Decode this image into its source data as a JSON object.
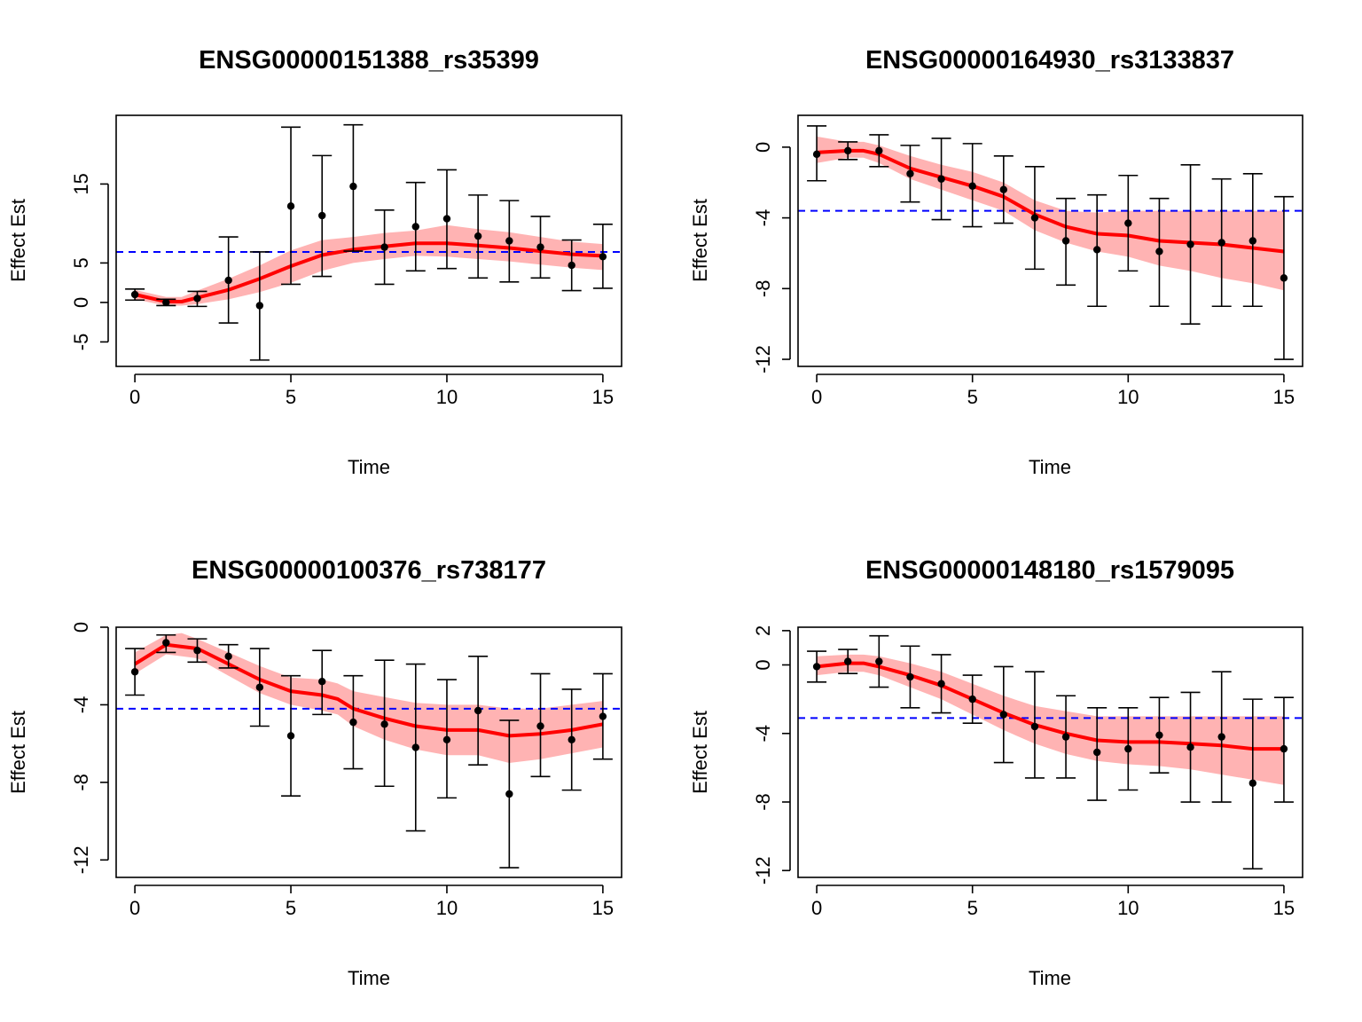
{
  "colors": {
    "line": "#ff0000",
    "band": "#ffb3b3",
    "reference": "#0000ff",
    "points": "#000000",
    "axes": "#000000"
  },
  "chart_data": [
    {
      "type": "line",
      "title": "ENSG00000151388_rs35399",
      "xlabel": "Time",
      "ylabel": "Effect Est",
      "xlim": [
        -0.6,
        15.6
      ],
      "ylim": [
        -8.1,
        23.7
      ],
      "xticks": [
        0,
        5,
        10,
        15
      ],
      "yticks": [
        -5,
        0,
        5,
        15
      ],
      "grid": false,
      "hline": 6.4,
      "points": {
        "x": [
          0,
          1,
          2,
          3,
          4,
          5,
          6,
          7,
          8,
          9,
          10,
          11,
          12,
          13,
          14,
          15
        ],
        "y": [
          1.0,
          0.0,
          0.5,
          2.8,
          -0.4,
          12.2,
          11.0,
          14.7,
          7.0,
          9.6,
          10.6,
          8.4,
          7.8,
          7.0,
          4.7,
          5.8
        ],
        "lower": [
          0.3,
          -0.4,
          -0.5,
          -2.6,
          -7.3,
          2.3,
          3.3,
          6.5,
          2.3,
          4.0,
          4.3,
          3.1,
          2.6,
          3.1,
          1.5,
          1.8
        ],
        "upper": [
          1.7,
          0.4,
          1.4,
          8.3,
          6.4,
          22.2,
          18.6,
          22.5,
          11.7,
          15.2,
          16.8,
          13.6,
          12.9,
          10.9,
          7.9,
          9.9
        ]
      },
      "fit": {
        "x": [
          0,
          1,
          1.5,
          2,
          3,
          4,
          5,
          6,
          7,
          8,
          9,
          10,
          11,
          12,
          13,
          14,
          15
        ],
        "y": [
          1.0,
          0.1,
          0.1,
          0.6,
          1.6,
          3.0,
          4.6,
          6.0,
          6.7,
          7.1,
          7.5,
          7.5,
          7.2,
          6.9,
          6.5,
          6.1,
          5.9
        ],
        "lower": [
          0.4,
          -0.4,
          -0.4,
          -0.2,
          0.4,
          1.3,
          2.5,
          4.0,
          5.0,
          5.5,
          5.9,
          5.8,
          5.5,
          5.2,
          4.8,
          4.4,
          4.1
        ],
        "upper": [
          1.6,
          0.7,
          0.7,
          1.5,
          3.0,
          4.7,
          6.6,
          7.9,
          8.3,
          8.8,
          9.1,
          9.8,
          9.3,
          8.9,
          8.3,
          7.7,
          7.4
        ]
      }
    },
    {
      "type": "line",
      "title": "ENSG00000164930_rs3133837",
      "xlabel": "Time",
      "ylabel": "Effect Est",
      "xlim": [
        -0.6,
        15.6
      ],
      "ylim": [
        -12.4,
        1.8
      ],
      "xticks": [
        0,
        5,
        10,
        15
      ],
      "yticks": [
        -12,
        -8,
        -4,
        0
      ],
      "grid": false,
      "hline": -3.6,
      "points": {
        "x": [
          0,
          1,
          2,
          3,
          4,
          5,
          6,
          7,
          8,
          9,
          10,
          11,
          12,
          13,
          14,
          15
        ],
        "y": [
          -0.4,
          -0.2,
          -0.2,
          -1.5,
          -1.8,
          -2.2,
          -2.4,
          -4.0,
          -5.3,
          -5.8,
          -4.3,
          -5.9,
          -5.5,
          -5.4,
          -5.3,
          -7.4
        ],
        "lower": [
          -1.9,
          -0.7,
          -1.1,
          -3.1,
          -4.1,
          -4.5,
          -4.3,
          -6.9,
          -7.8,
          -9.0,
          -7.0,
          -9.0,
          -10.0,
          -9.0,
          -9.0,
          -12.0
        ],
        "upper": [
          1.2,
          0.3,
          0.7,
          0.1,
          0.5,
          0.2,
          -0.5,
          -1.1,
          -2.9,
          -2.7,
          -1.6,
          -2.9,
          -1.0,
          -1.8,
          -1.5,
          -2.8
        ]
      },
      "fit": {
        "x": [
          0,
          1,
          1.5,
          2,
          3,
          4,
          5,
          6,
          7,
          8,
          9,
          10,
          11,
          12,
          13,
          14,
          15
        ],
        "y": [
          -0.3,
          -0.2,
          -0.2,
          -0.4,
          -1.2,
          -1.7,
          -2.2,
          -2.8,
          -3.8,
          -4.5,
          -4.9,
          -5.0,
          -5.3,
          -5.4,
          -5.5,
          -5.7,
          -5.9
        ],
        "lower": [
          -0.9,
          -0.6,
          -0.6,
          -0.9,
          -1.8,
          -2.4,
          -3.0,
          -3.6,
          -4.7,
          -5.4,
          -5.9,
          -6.2,
          -6.7,
          -7.0,
          -7.4,
          -7.7,
          -8.1
        ],
        "upper": [
          0.6,
          0.3,
          0.3,
          0.1,
          -0.5,
          -1.0,
          -1.4,
          -2.0,
          -3.0,
          -3.6,
          -3.7,
          -3.6,
          -3.6,
          -3.6,
          -3.6,
          -3.6,
          -3.6
        ]
      }
    },
    {
      "type": "line",
      "title": "ENSG00000100376_rs738177",
      "xlabel": "Time",
      "ylabel": "Effect Est",
      "xlim": [
        -0.6,
        15.6
      ],
      "ylim": [
        -12.9,
        0.0
      ],
      "xticks": [
        0,
        5,
        10,
        15
      ],
      "yticks": [
        -12,
        -8,
        -4,
        0
      ],
      "grid": false,
      "hline": -4.2,
      "points": {
        "x": [
          0,
          1,
          2,
          3,
          4,
          5,
          6,
          7,
          8,
          9,
          10,
          11,
          12,
          13,
          14,
          15
        ],
        "y": [
          -2.3,
          -0.8,
          -1.2,
          -1.5,
          -3.1,
          -5.6,
          -2.8,
          -4.9,
          -5.0,
          -6.2,
          -5.8,
          -4.3,
          -8.6,
          -5.1,
          -5.8,
          -4.6
        ],
        "lower": [
          -3.5,
          -1.3,
          -1.8,
          -2.1,
          -5.1,
          -8.7,
          -4.5,
          -7.3,
          -8.2,
          -10.5,
          -8.8,
          -7.1,
          -12.4,
          -7.7,
          -8.4,
          -6.8
        ],
        "upper": [
          -1.1,
          -0.4,
          -0.6,
          -0.9,
          -1.1,
          -2.5,
          -1.2,
          -2.5,
          -1.7,
          -1.9,
          -2.7,
          -1.5,
          -4.8,
          -2.4,
          -3.2,
          -2.4
        ]
      },
      "fit": {
        "x": [
          0,
          1,
          1.5,
          2,
          3,
          4,
          5,
          6,
          6.5,
          7,
          8,
          9,
          10,
          11,
          12,
          13,
          14,
          15
        ],
        "y": [
          -1.9,
          -0.9,
          -1.0,
          -1.1,
          -1.9,
          -2.7,
          -3.3,
          -3.5,
          -3.7,
          -4.2,
          -4.7,
          -5.1,
          -5.3,
          -5.3,
          -5.6,
          -5.5,
          -5.3,
          -5.0
        ],
        "lower": [
          -2.4,
          -1.4,
          -1.5,
          -1.6,
          -2.5,
          -3.4,
          -4.0,
          -4.3,
          -4.5,
          -5.1,
          -5.8,
          -6.3,
          -6.6,
          -6.6,
          -7.0,
          -6.8,
          -6.5,
          -6.2
        ],
        "upper": [
          -1.3,
          -0.4,
          -0.3,
          -0.6,
          -1.3,
          -2.0,
          -2.6,
          -2.7,
          -2.9,
          -3.3,
          -3.6,
          -3.9,
          -4.0,
          -4.0,
          -4.2,
          -4.2,
          -4.0,
          -3.8
        ]
      }
    },
    {
      "type": "line",
      "title": "ENSG00000148180_rs1579095",
      "xlabel": "Time",
      "ylabel": "Effect Est",
      "xlim": [
        -0.6,
        15.6
      ],
      "ylim": [
        -12.4,
        2.2
      ],
      "xticks": [
        0,
        5,
        10,
        15
      ],
      "yticks": [
        -12,
        -8,
        -4,
        0,
        2
      ],
      "grid": false,
      "hline": -3.1,
      "points": {
        "x": [
          0,
          1,
          2,
          3,
          4,
          5,
          6,
          7,
          8,
          9,
          10,
          11,
          12,
          13,
          14,
          15
        ],
        "y": [
          -0.1,
          0.2,
          0.2,
          -0.7,
          -1.1,
          -2.0,
          -2.9,
          -3.6,
          -4.2,
          -5.1,
          -4.9,
          -4.1,
          -4.8,
          -4.2,
          -6.9,
          -4.9
        ],
        "lower": [
          -1.0,
          -0.5,
          -1.3,
          -2.5,
          -2.8,
          -3.4,
          -5.7,
          -6.6,
          -6.6,
          -7.9,
          -7.3,
          -6.3,
          -8.0,
          -8.0,
          -11.9,
          -8.0
        ],
        "upper": [
          0.8,
          0.9,
          1.7,
          1.1,
          0.6,
          -0.6,
          -0.1,
          -0.4,
          -1.8,
          -2.5,
          -2.5,
          -1.9,
          -1.6,
          -0.4,
          -2.0,
          -1.9
        ]
      },
      "fit": {
        "x": [
          0,
          1,
          1.5,
          2,
          3,
          4,
          5,
          6,
          7,
          8,
          9,
          10,
          11,
          12,
          13,
          14,
          15
        ],
        "y": [
          -0.1,
          0.1,
          0.1,
          -0.1,
          -0.6,
          -1.2,
          -2.0,
          -2.8,
          -3.5,
          -4.0,
          -4.4,
          -4.5,
          -4.5,
          -4.6,
          -4.7,
          -4.9,
          -4.9
        ],
        "lower": [
          -0.6,
          -0.4,
          -0.4,
          -0.6,
          -1.3,
          -2.0,
          -2.9,
          -3.8,
          -4.6,
          -5.2,
          -5.6,
          -5.8,
          -5.9,
          -6.1,
          -6.4,
          -6.7,
          -7.0
        ],
        "upper": [
          0.5,
          0.6,
          0.6,
          0.5,
          0.1,
          -0.4,
          -1.1,
          -1.8,
          -2.4,
          -2.7,
          -3.0,
          -3.0,
          -3.0,
          -3.0,
          -3.0,
          -3.0,
          -3.0
        ]
      }
    }
  ]
}
